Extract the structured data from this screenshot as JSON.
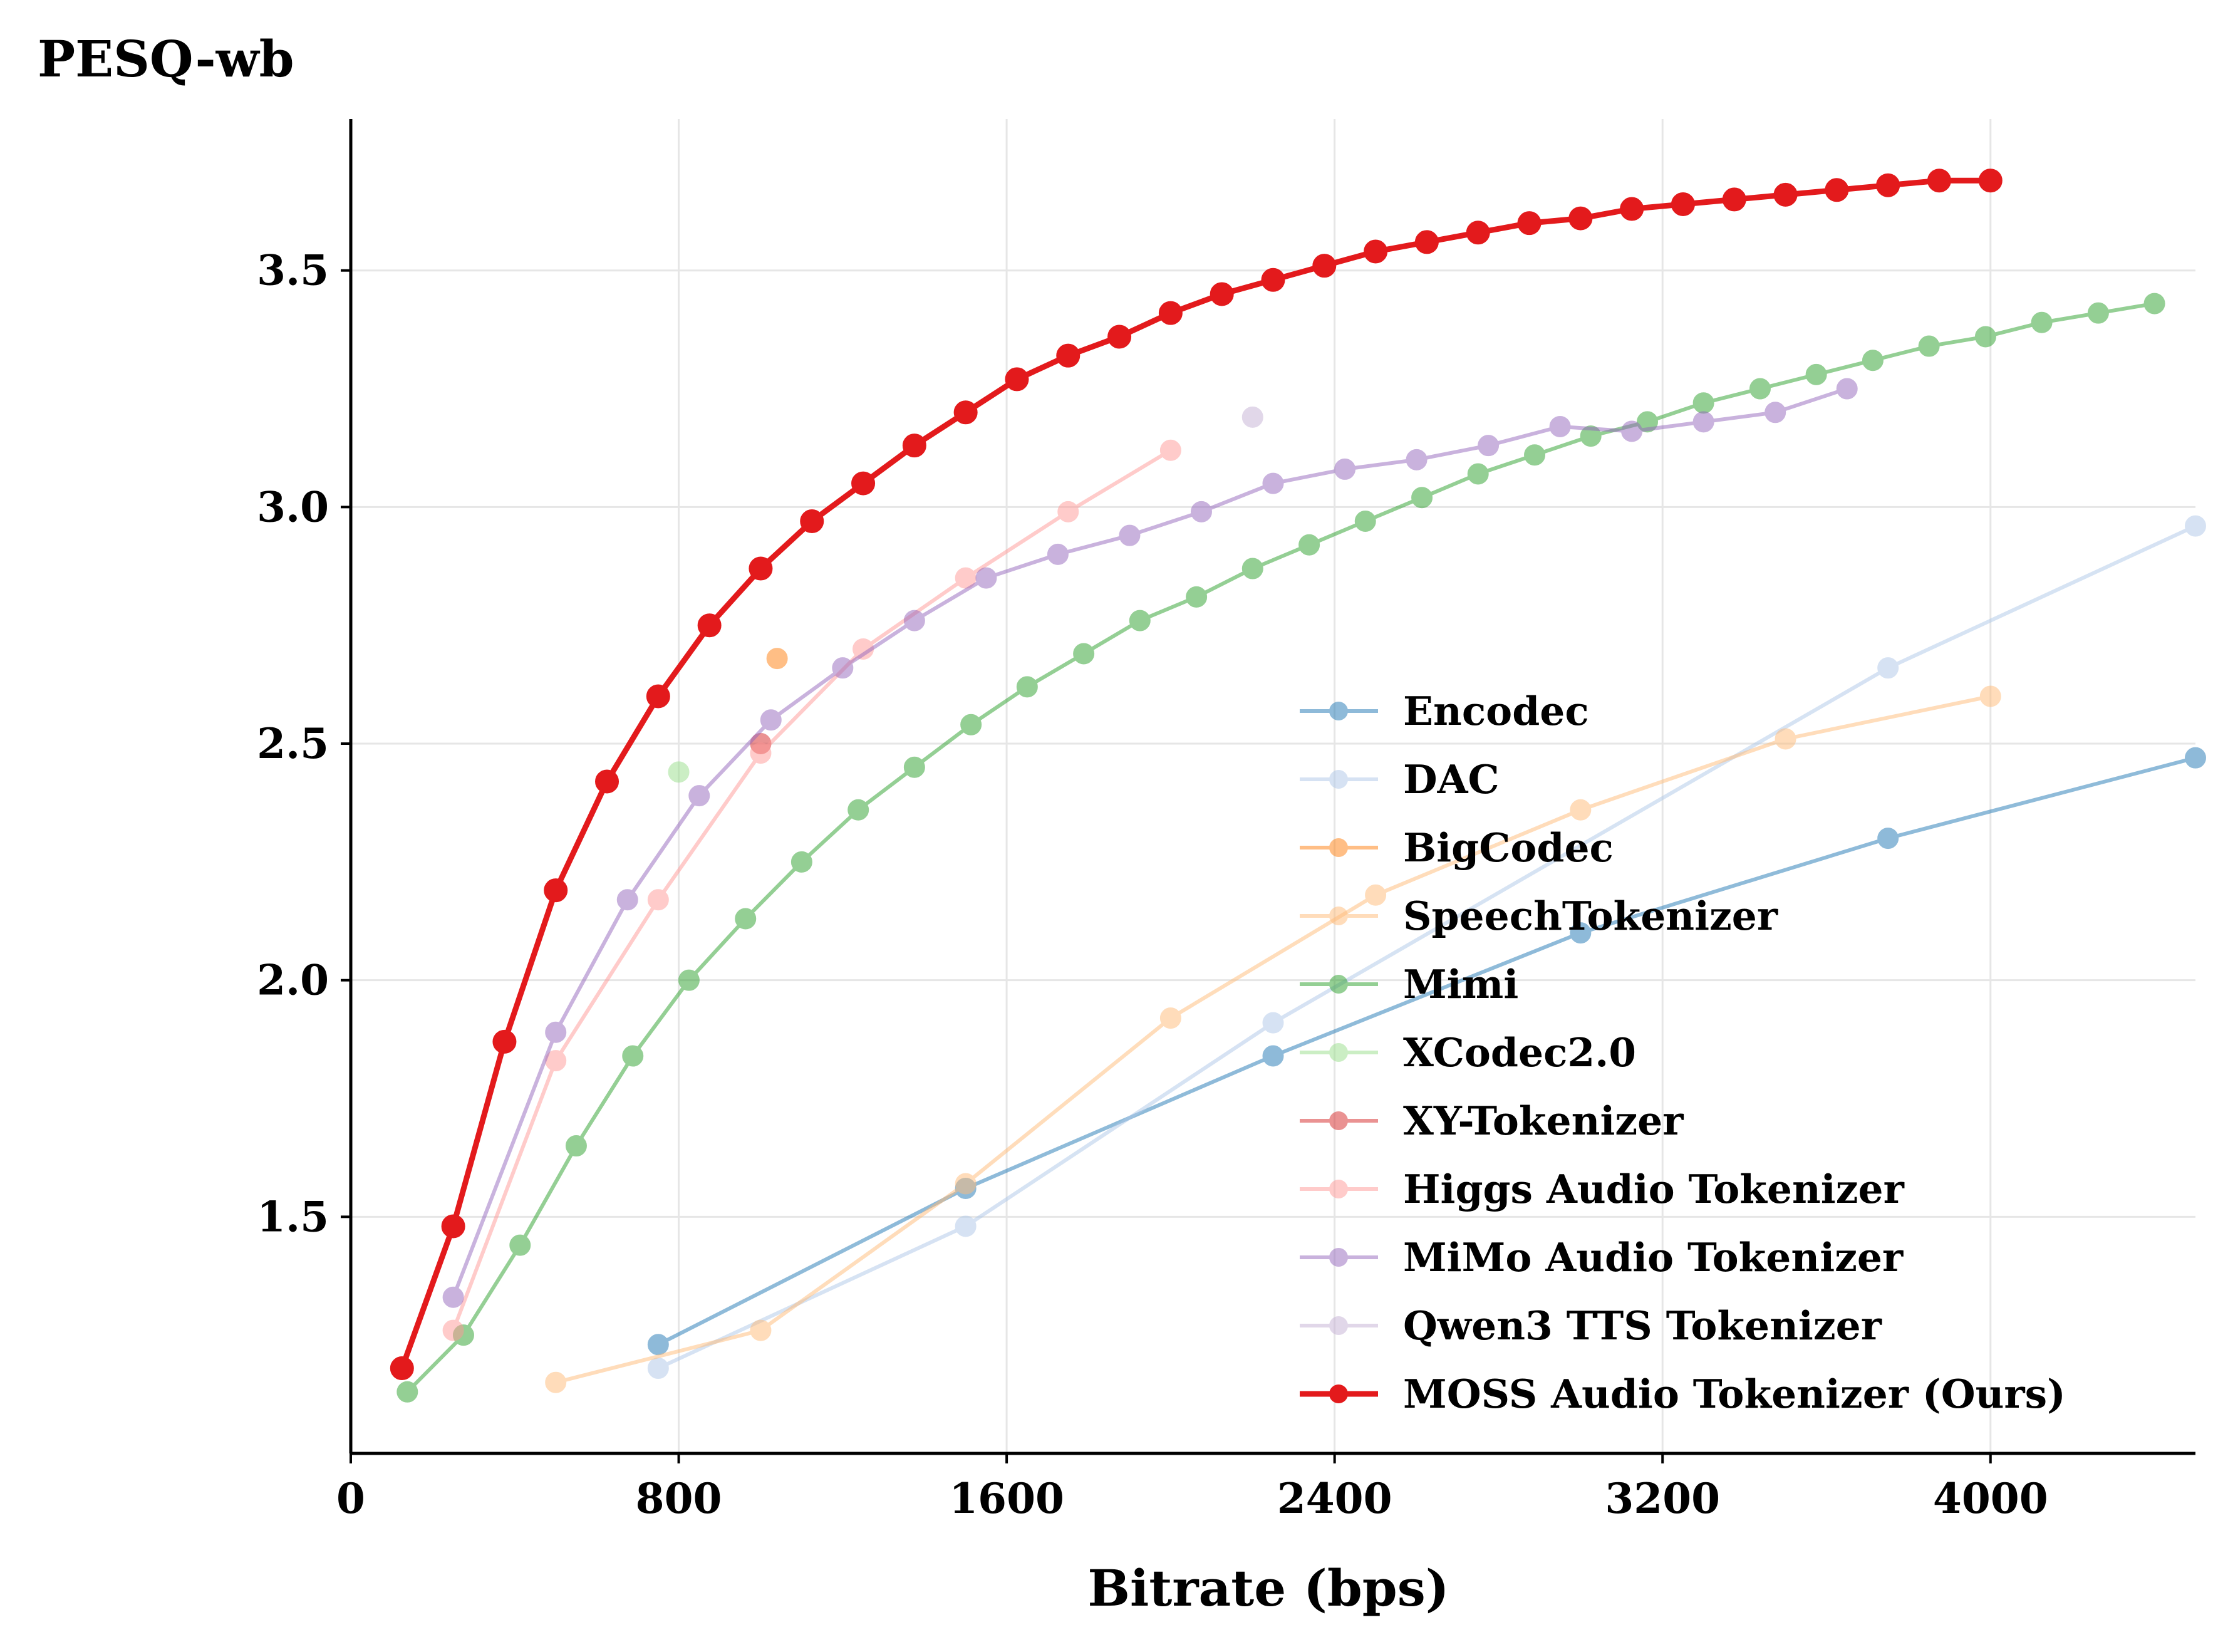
{
  "chart_data": {
    "type": "line",
    "title": "",
    "xlabel": "Bitrate (bps)",
    "ylabel": "PESQ-wb",
    "xlim": [
      0,
      4500
    ],
    "ylim": [
      1.0,
      3.82
    ],
    "x_ticks": [
      0,
      800,
      1600,
      2400,
      3200,
      4000
    ],
    "x_tick_labels": [
      "0",
      "800",
      "1600",
      "2400",
      "3200",
      "4000"
    ],
    "y_ticks": [
      1.5,
      2.0,
      2.5,
      3.0,
      3.5
    ],
    "y_tick_labels": [
      "1.5",
      "2.0",
      "2.5",
      "3.0",
      "3.5"
    ],
    "grid": true,
    "legend_position": "lower-right",
    "series": [
      {
        "name": "Encodec",
        "color": "#1f77b4",
        "x": [
          750,
          1500,
          2250,
          3000,
          3750,
          4500
        ],
        "y": [
          1.23,
          1.56,
          1.84,
          2.1,
          2.3,
          2.47
        ]
      },
      {
        "name": "DAC",
        "color": "#aec7e8",
        "x": [
          750,
          1500,
          2250,
          3750,
          4500
        ],
        "y": [
          1.18,
          1.48,
          1.91,
          2.66,
          2.96
        ]
      },
      {
        "name": "BigCodec",
        "color": "#ff7f0e",
        "x": [
          1040
        ],
        "y": [
          2.68
        ]
      },
      {
        "name": "SpeechTokenizer",
        "color": "#ffbb78",
        "x": [
          500,
          1000,
          1500,
          2000,
          2500,
          3000,
          3500,
          4000
        ],
        "y": [
          1.15,
          1.26,
          1.57,
          1.92,
          2.18,
          2.36,
          2.51,
          2.6
        ]
      },
      {
        "name": "Mimi",
        "color": "#2ca02c",
        "x": [
          138,
          275,
          413,
          550,
          688,
          825,
          963,
          1100,
          1238,
          1375,
          1513,
          1650,
          1788,
          1925,
          2063,
          2200,
          2338,
          2475,
          2613,
          2750,
          2888,
          3025,
          3163,
          3300,
          3438,
          3575,
          3713,
          3850,
          3988,
          4125,
          4263,
          4400
        ],
        "y": [
          1.13,
          1.25,
          1.44,
          1.65,
          1.84,
          2.0,
          2.13,
          2.25,
          2.36,
          2.45,
          2.54,
          2.62,
          2.69,
          2.76,
          2.81,
          2.87,
          2.92,
          2.97,
          3.02,
          3.07,
          3.11,
          3.15,
          3.18,
          3.22,
          3.25,
          3.28,
          3.31,
          3.34,
          3.36,
          3.39,
          3.41,
          3.43
        ]
      },
      {
        "name": "XCodec2.0",
        "color": "#98df8a",
        "x": [
          800
        ],
        "y": [
          2.44
        ]
      },
      {
        "name": "XY-Tokenizer",
        "color": "#d62728",
        "x": [
          1000
        ],
        "y": [
          2.5
        ]
      },
      {
        "name": "Higgs Audio Tokenizer",
        "color": "#ff9896",
        "x": [
          250,
          500,
          750,
          1000,
          1250,
          1500,
          1750,
          2000
        ],
        "y": [
          1.26,
          1.83,
          2.17,
          2.48,
          2.7,
          2.85,
          2.99,
          3.12
        ]
      },
      {
        "name": "MiMo Audio Tokenizer",
        "color": "#9467bd",
        "x": [
          250,
          500,
          675,
          850,
          1025,
          1200,
          1375,
          1550,
          1725,
          1900,
          2075,
          2250,
          2425,
          2600,
          2775,
          2950,
          3125,
          3300,
          3475,
          3650
        ],
        "y": [
          1.33,
          1.89,
          2.17,
          2.39,
          2.55,
          2.66,
          2.76,
          2.85,
          2.9,
          2.94,
          2.99,
          3.05,
          3.08,
          3.1,
          3.13,
          3.17,
          3.16,
          3.18,
          3.2,
          3.25
        ]
      },
      {
        "name": "Qwen3 TTS Tokenizer",
        "color": "#c5b0d5",
        "x": [
          2200
        ],
        "y": [
          3.19
        ]
      },
      {
        "name": "MOSS Audio Tokenizer (Ours)",
        "color": "#e31a1c",
        "x": [
          125,
          250,
          375,
          500,
          625,
          750,
          875,
          1000,
          1125,
          1250,
          1375,
          1500,
          1625,
          1750,
          1875,
          2000,
          2125,
          2250,
          2375,
          2500,
          2625,
          2750,
          2875,
          3000,
          3125,
          3250,
          3375,
          3500,
          3625,
          3750,
          3875,
          4000
        ],
        "y": [
          1.18,
          1.48,
          1.87,
          2.19,
          2.42,
          2.6,
          2.75,
          2.87,
          2.97,
          3.05,
          3.13,
          3.2,
          3.27,
          3.32,
          3.36,
          3.41,
          3.45,
          3.48,
          3.51,
          3.54,
          3.56,
          3.58,
          3.6,
          3.61,
          3.63,
          3.64,
          3.65,
          3.66,
          3.67,
          3.68,
          3.69,
          3.69
        ]
      }
    ]
  }
}
